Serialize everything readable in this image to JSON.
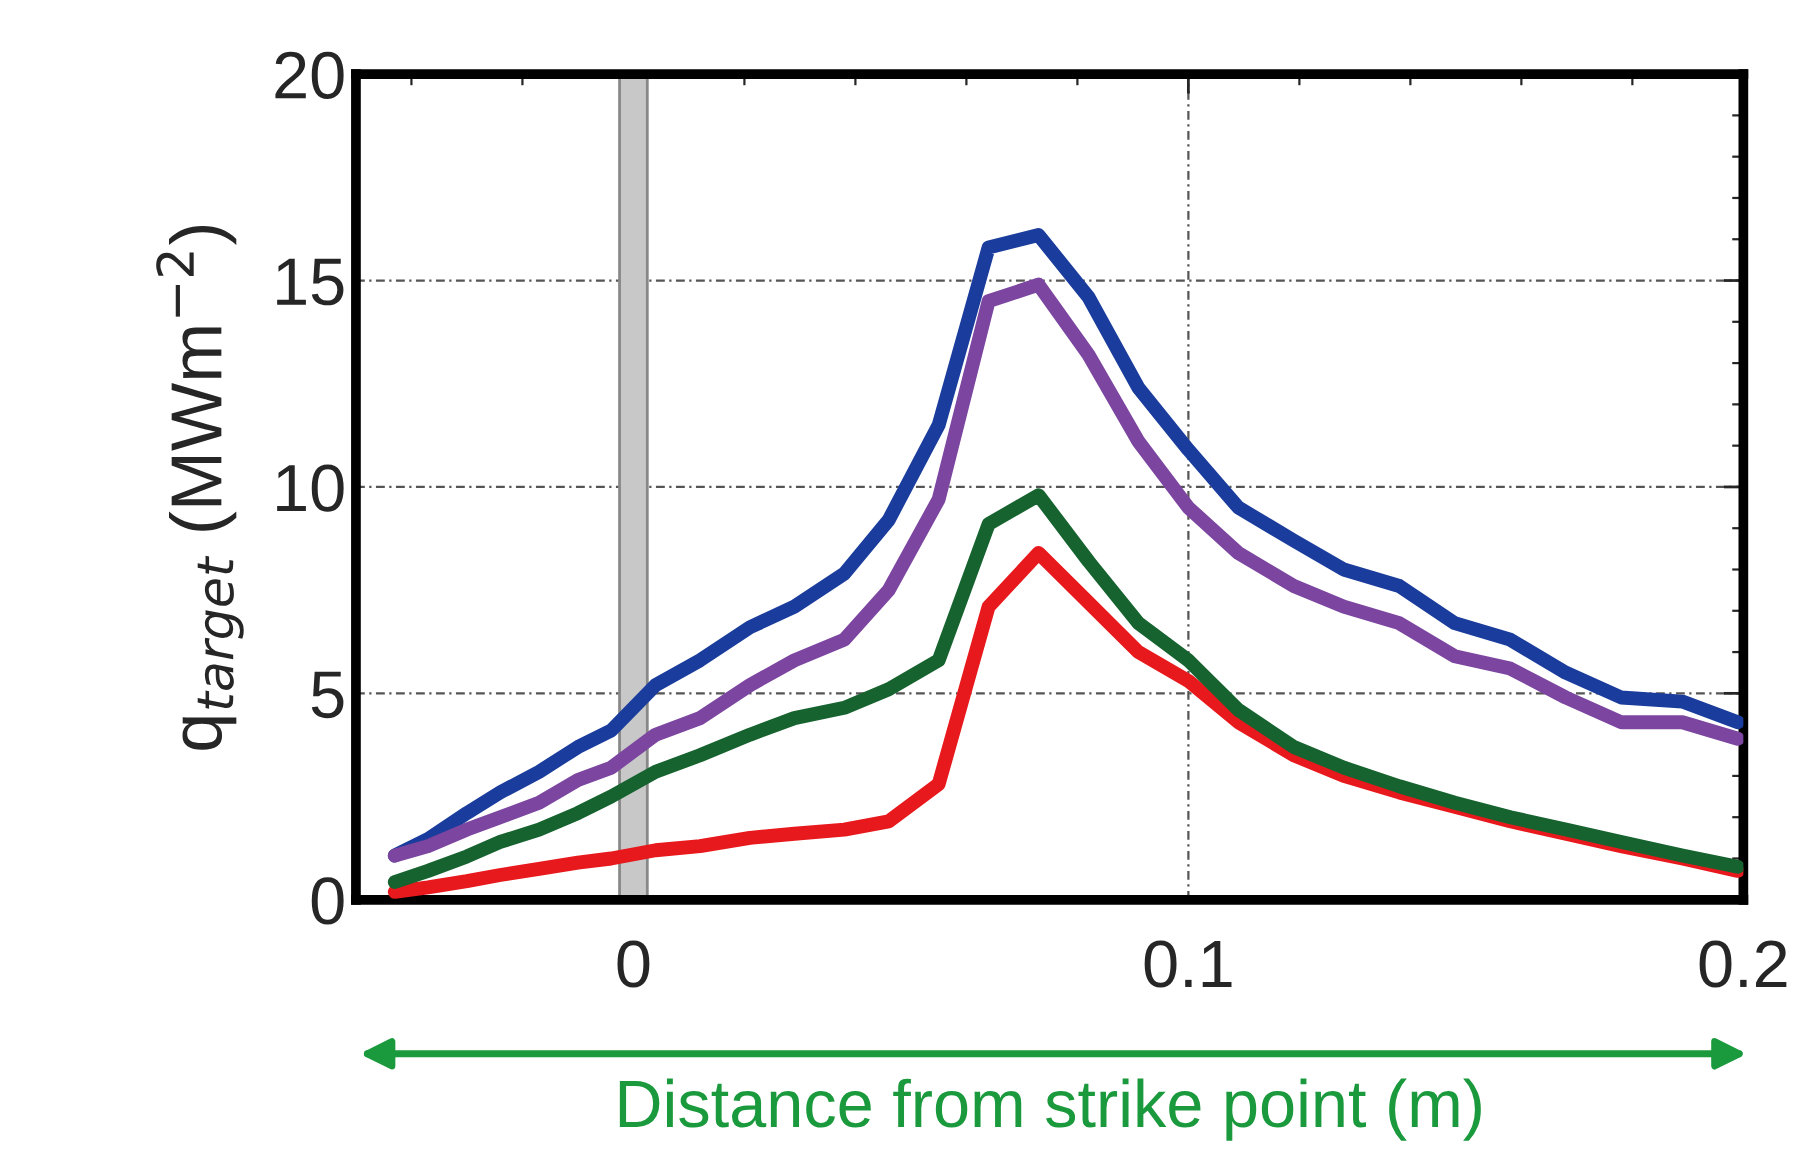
{
  "chart_data": {
    "type": "line",
    "xlabel": "Distance from strike point (m)",
    "ylabel": "q$_{target}$ (MWm$^{−2}$)",
    "x": [
      -0.043,
      -0.037,
      -0.03,
      -0.024,
      -0.017,
      -0.01,
      -0.004,
      0.004,
      0.012,
      0.021,
      0.029,
      0.038,
      0.046,
      0.055,
      0.064,
      0.073,
      0.082,
      0.091,
      0.1,
      0.109,
      0.119,
      0.128,
      0.138,
      0.148,
      0.158,
      0.168,
      0.178,
      0.189,
      0.199
    ],
    "series": [
      {
        "color": "#1a3c9c",
        "values": [
          1.07,
          1.47,
          2.1,
          2.6,
          3.1,
          3.7,
          4.1,
          5.2,
          5.8,
          6.6,
          7.1,
          7.9,
          9.2,
          11.5,
          15.8,
          16.1,
          14.6,
          12.4,
          10.9,
          9.5,
          8.7,
          8.0,
          7.6,
          6.7,
          6.3,
          5.5,
          4.9,
          4.8,
          4.3
        ]
      },
      {
        "color": "#7b45a0",
        "values": [
          1.07,
          1.3,
          1.7,
          2.0,
          2.35,
          2.9,
          3.2,
          4.0,
          4.4,
          5.2,
          5.8,
          6.3,
          7.5,
          9.7,
          14.5,
          14.9,
          13.2,
          11.1,
          9.5,
          8.4,
          7.6,
          7.1,
          6.7,
          5.9,
          5.6,
          4.9,
          4.3,
          4.3,
          3.9
        ]
      },
      {
        "color": "#e8191c",
        "values": [
          0.19,
          0.3,
          0.45,
          0.6,
          0.75,
          0.9,
          1.0,
          1.2,
          1.3,
          1.5,
          1.6,
          1.7,
          1.9,
          2.8,
          7.1,
          8.4,
          7.2,
          6.0,
          5.3,
          4.3,
          3.5,
          3.0,
          2.6,
          2.25,
          1.9,
          1.6,
          1.3,
          1.0,
          0.7
        ]
      },
      {
        "color": "#16632f",
        "values": [
          0.43,
          0.7,
          1.05,
          1.4,
          1.7,
          2.1,
          2.5,
          3.1,
          3.5,
          4.0,
          4.4,
          4.65,
          5.1,
          5.8,
          9.1,
          9.8,
          8.2,
          6.7,
          5.8,
          4.6,
          3.7,
          3.2,
          2.75,
          2.35,
          2.0,
          1.7,
          1.4,
          1.07,
          0.8
        ]
      }
    ],
    "bands": [
      {
        "axis": "x",
        "from": -0.0025,
        "to": 0.0025,
        "color": "#c8c8c8"
      }
    ],
    "xlim": [
      -0.05,
      0.2
    ],
    "xticks": [
      0,
      0.1,
      0.2
    ],
    "ylim": [
      0,
      20
    ],
    "yticks": [
      0,
      5,
      10,
      15,
      20
    ],
    "grid": true,
    "marker": "none",
    "line_style": "solid"
  }
}
